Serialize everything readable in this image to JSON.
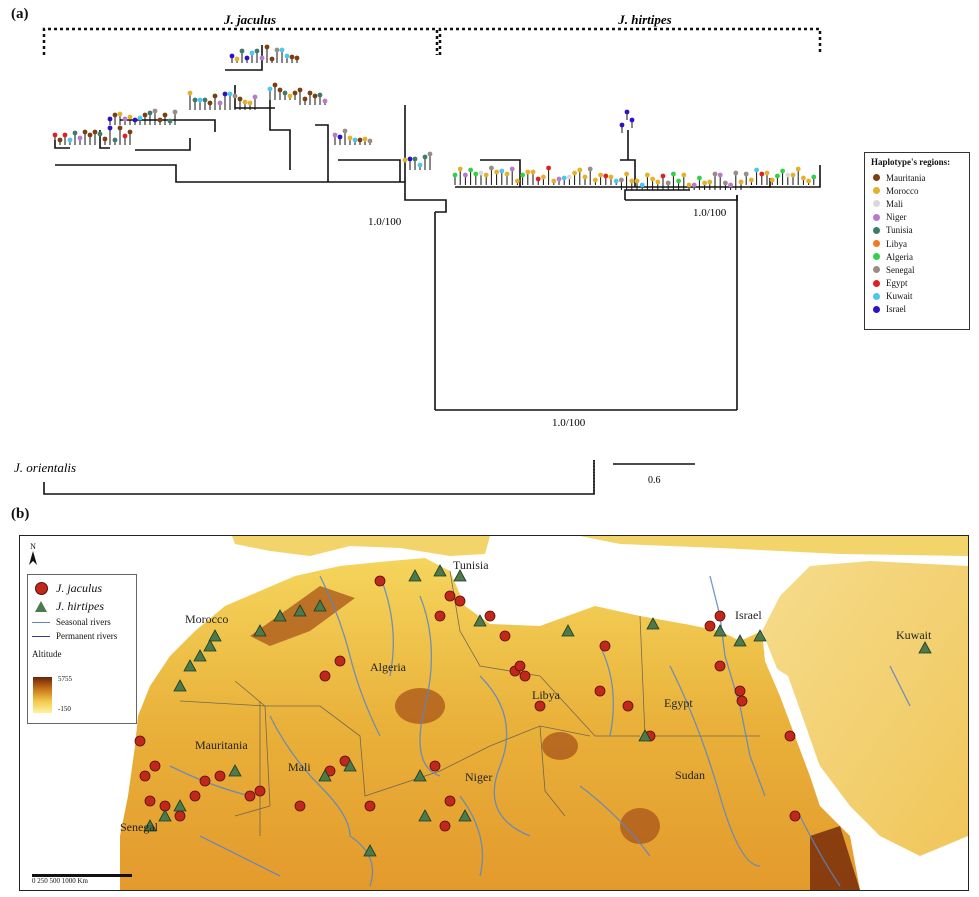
{
  "panel_a": {
    "label": "(a)",
    "clade_left": "J. jaculus",
    "clade_right": "J. hirtipes",
    "support_jaculus": "1.0/100",
    "support_hirtipes": "1.0/100",
    "support_root": "1.0/100",
    "outgroup": "J. orientalis",
    "scale_value": "0.6"
  },
  "legend": {
    "title": "Haplotype's regions:",
    "items": [
      {
        "label": "Mauritania",
        "color": "#7b3f12"
      },
      {
        "label": "Morocco",
        "color": "#e5b12a"
      },
      {
        "label": "Mali",
        "color": "#d9d9d9"
      },
      {
        "label": "Niger",
        "color": "#b87bc9"
      },
      {
        "label": "Tunisia",
        "color": "#3f7a6a"
      },
      {
        "label": "Libya",
        "color": "#ef7a1f"
      },
      {
        "label": "Algeria",
        "color": "#35d04a"
      },
      {
        "label": "Senegal",
        "color": "#9a8d86"
      },
      {
        "label": "Egypt",
        "color": "#e02121"
      },
      {
        "label": "Kuwait",
        "color": "#4cc6ee"
      },
      {
        "label": "Israel",
        "color": "#2b12c8"
      }
    ]
  },
  "panel_b": {
    "label": "(b)",
    "legend": {
      "north": "N",
      "species1": "J. jaculus",
      "species2": "J. hirtipes",
      "seasonal": "Seasonal rivers",
      "permanent": "Permanent rivers",
      "altitude_title": "Altitude",
      "alt_max": "5755",
      "alt_min": "-150"
    },
    "countries": [
      "Tunisia",
      "Morocco",
      "Algeria",
      "Israel",
      "Kuwait",
      "Libya",
      "Egypt",
      "Mauritania",
      "Mali",
      "Niger",
      "Sudan",
      "Senegal"
    ],
    "scale_text": "0   250   500          1000 Km"
  }
}
